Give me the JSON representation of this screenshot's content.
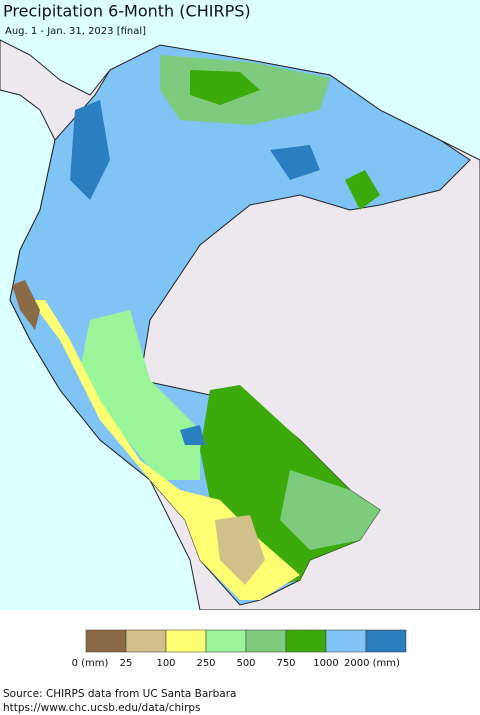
{
  "header": {
    "title": "Precipitation 6-Month (CHIRPS)",
    "subtitle": "Aug. 1 - Jan. 31, 2023 [final]"
  },
  "legend": {
    "colors": [
      "#8b6b47",
      "#d2c08a",
      "#ffff73",
      "#98f598",
      "#7dcb7d",
      "#3caa0a",
      "#80c4f5",
      "#2b7fc0"
    ],
    "labels": [
      "0 (mm)",
      "25",
      "100",
      "250",
      "500",
      "750",
      "1000",
      "2000 (mm)"
    ]
  },
  "footer": {
    "source": "Source: CHIRPS data from UC Santa Barbara",
    "url": "https://www.chc.ucsb.edu/data/chirps"
  }
}
